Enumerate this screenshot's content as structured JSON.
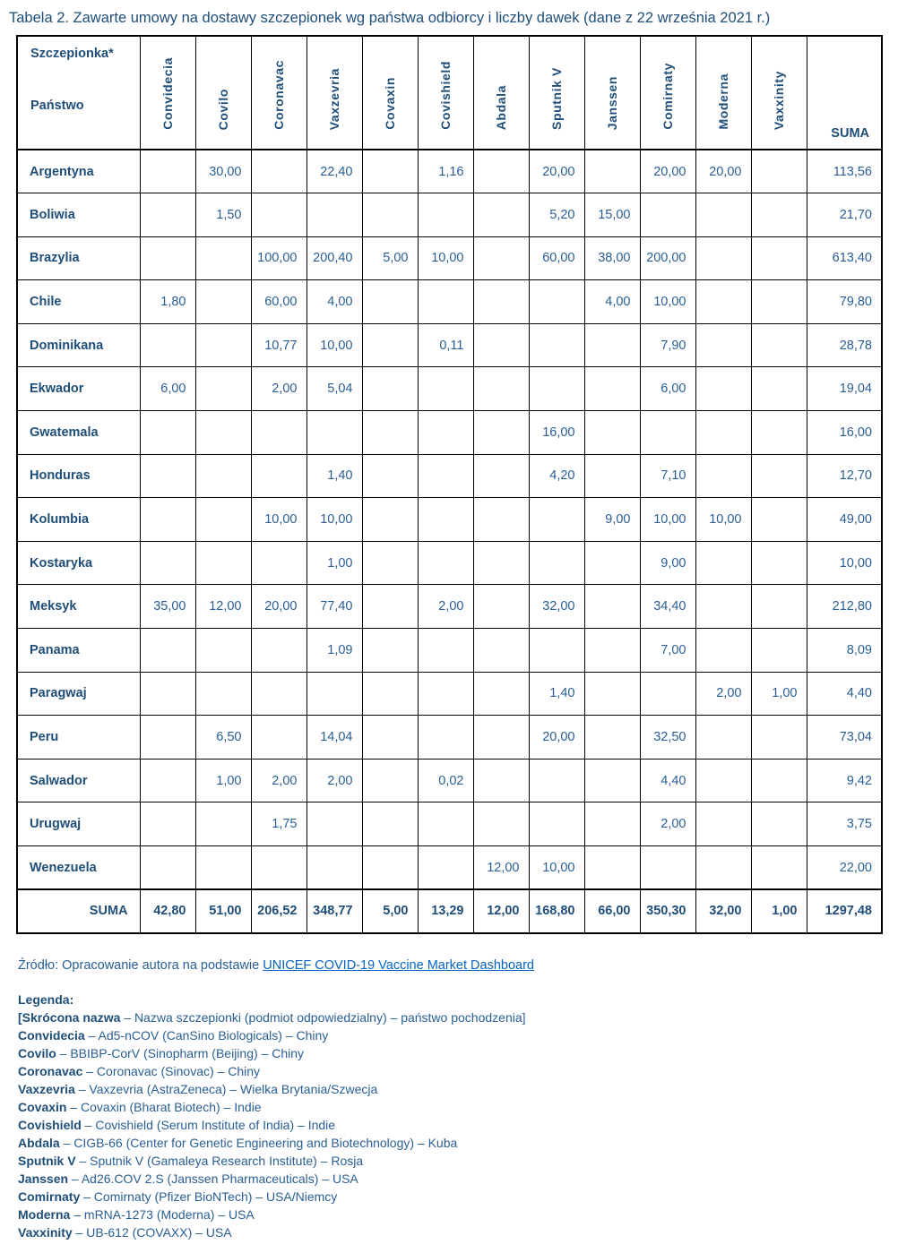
{
  "title": "Tabela 2. Zawarte umowy na dostawy szczepionek wg państwa odbiorcy i liczby dawek (dane z 22 września 2021 r.)",
  "colors": {
    "heading_blue": "#1F4E79",
    "body_blue": "#2A5E94",
    "link_blue": "#0563C1",
    "border_black": "#000000"
  },
  "table": {
    "corner_top": "Szczepionka*",
    "corner_bottom": "Państwo",
    "columns": [
      "Convidecia",
      "Covilo",
      "Coronavac",
      "Vaxzevria",
      "Covaxin",
      "Covishield",
      "Abdala",
      "Sputnik V",
      "Janssen",
      "Comirnaty",
      "Moderna",
      "Vaxxinity"
    ],
    "suma_header": "SUMA",
    "rows": [
      {
        "country": "Argentyna",
        "values": [
          "",
          "30,00",
          "",
          "22,40",
          "",
          "1,16",
          "",
          "20,00",
          "",
          "20,00",
          "20,00",
          ""
        ],
        "suma": "113,56"
      },
      {
        "country": "Boliwia",
        "values": [
          "",
          "1,50",
          "",
          "",
          "",
          "",
          "",
          "5,20",
          "15,00",
          "",
          "",
          ""
        ],
        "suma": "21,70"
      },
      {
        "country": "Brazylia",
        "values": [
          "",
          "",
          "100,00",
          "200,40",
          "5,00",
          "10,00",
          "",
          "60,00",
          "38,00",
          "200,00",
          "",
          ""
        ],
        "suma": "613,40"
      },
      {
        "country": "Chile",
        "values": [
          "1,80",
          "",
          "60,00",
          "4,00",
          "",
          "",
          "",
          "",
          "4,00",
          "10,00",
          "",
          ""
        ],
        "suma": "79,80"
      },
      {
        "country": "Dominikana",
        "values": [
          "",
          "",
          "10,77",
          "10,00",
          "",
          "0,11",
          "",
          "",
          "",
          "7,90",
          "",
          ""
        ],
        "suma": "28,78"
      },
      {
        "country": "Ekwador",
        "values": [
          "6,00",
          "",
          "2,00",
          "5,04",
          "",
          "",
          "",
          "",
          "",
          "6,00",
          "",
          ""
        ],
        "suma": "19,04"
      },
      {
        "country": "Gwatemala",
        "values": [
          "",
          "",
          "",
          "",
          "",
          "",
          "",
          "16,00",
          "",
          "",
          "",
          ""
        ],
        "suma": "16,00"
      },
      {
        "country": "Honduras",
        "values": [
          "",
          "",
          "",
          "1,40",
          "",
          "",
          "",
          "4,20",
          "",
          "7,10",
          "",
          ""
        ],
        "suma": "12,70"
      },
      {
        "country": "Kolumbia",
        "values": [
          "",
          "",
          "10,00",
          "10,00",
          "",
          "",
          "",
          "",
          "9,00",
          "10,00",
          "10,00",
          ""
        ],
        "suma": "49,00"
      },
      {
        "country": "Kostaryka",
        "values": [
          "",
          "",
          "",
          "1,00",
          "",
          "",
          "",
          "",
          "",
          "9,00",
          "",
          ""
        ],
        "suma": "10,00"
      },
      {
        "country": "Meksyk",
        "values": [
          "35,00",
          "12,00",
          "20,00",
          "77,40",
          "",
          "2,00",
          "",
          "32,00",
          "",
          "34,40",
          "",
          ""
        ],
        "suma": "212,80"
      },
      {
        "country": "Panama",
        "values": [
          "",
          "",
          "",
          "1,09",
          "",
          "",
          "",
          "",
          "",
          "7,00",
          "",
          ""
        ],
        "suma": "8,09"
      },
      {
        "country": "Paragwaj",
        "values": [
          "",
          "",
          "",
          "",
          "",
          "",
          "",
          "1,40",
          "",
          "",
          "2,00",
          "1,00"
        ],
        "suma": "4,40"
      },
      {
        "country": "Peru",
        "values": [
          "",
          "6,50",
          "",
          "14,04",
          "",
          "",
          "",
          "20,00",
          "",
          "32,50",
          "",
          ""
        ],
        "suma": "73,04"
      },
      {
        "country": "Salwador",
        "values": [
          "",
          "1,00",
          "2,00",
          "2,00",
          "",
          "0,02",
          "",
          "",
          "",
          "4,40",
          "",
          ""
        ],
        "suma": "9,42"
      },
      {
        "country": "Urugwaj",
        "values": [
          "",
          "",
          "1,75",
          "",
          "",
          "",
          "",
          "",
          "",
          "2,00",
          "",
          ""
        ],
        "suma": "3,75"
      },
      {
        "country": "Wenezuela",
        "values": [
          "",
          "",
          "",
          "",
          "",
          "",
          "12,00",
          "10,00",
          "",
          "",
          "",
          ""
        ],
        "suma": "22,00"
      }
    ],
    "totals": {
      "label": "SUMA",
      "values": [
        "42,80",
        "51,00",
        "206,52",
        "348,77",
        "5,00",
        "13,29",
        "12,00",
        "168,80",
        "66,00",
        "350,30",
        "32,00",
        "1,00"
      ],
      "suma": "1297,48"
    }
  },
  "source": {
    "prefix": "Źródło: Opracowanie autora na podstawie ",
    "link_text": "UNICEF COVID-19 Vaccine Market Dashboard"
  },
  "legend": {
    "heading": "Legenda:",
    "note_bold": "[Skrócona nazwa",
    "note_rest": " – Nazwa szczepionki (podmiot odpowiedzialny) – państwo pochodzenia]",
    "entries": [
      {
        "name": "Convidecia",
        "desc": " – Ad5-nCOV (CanSino Biologicals) – Chiny"
      },
      {
        "name": "Covilo",
        "desc": " – BBIBP-CorV (Sinopharm (Beijing) – Chiny"
      },
      {
        "name": "Coronavac",
        "desc": " – Coronavac  (Sinovac) – Chiny"
      },
      {
        "name": "Vaxzevria",
        "desc": " – Vaxzevria (AstraZeneca) – Wielka Brytania/Szwecja"
      },
      {
        "name": "Covaxin",
        "desc": " – Covaxin (Bharat Biotech) – Indie"
      },
      {
        "name": "Covishield",
        "desc": " – Covishield (Serum Institute of India) – Indie"
      },
      {
        "name": "Abdala",
        "desc": " – CIGB-66 (Center for Genetic Engineering and Biotechnology) – Kuba"
      },
      {
        "name": "Sputnik V",
        "desc": " – Sputnik V (Gamaleya Research Institute) – Rosja"
      },
      {
        "name": "Janssen",
        "desc": " – Ad26.COV 2.S (Janssen Pharmaceuticals) – USA"
      },
      {
        "name": "Comirnaty",
        "desc": " – Comirnaty (Pfizer BioNTech) – USA/Niemcy"
      },
      {
        "name": "Moderna",
        "desc": " – mRNA-1273 (Moderna) – USA"
      },
      {
        "name": "Vaxxinity",
        "desc": " – UB-612 (COVAXX) – USA"
      }
    ]
  }
}
